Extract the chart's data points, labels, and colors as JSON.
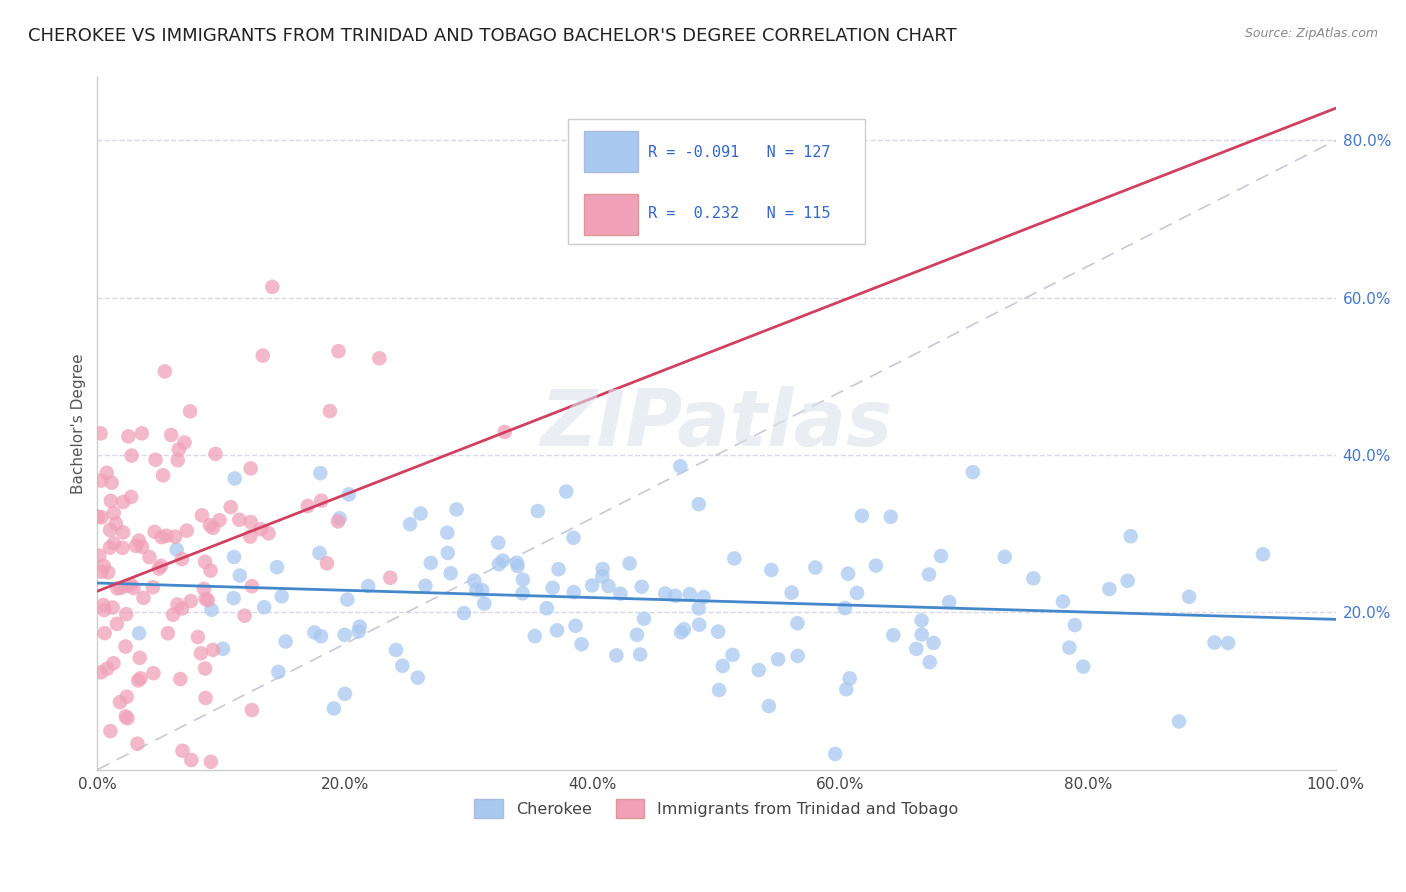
{
  "title": "CHEROKEE VS IMMIGRANTS FROM TRINIDAD AND TOBAGO BACHELOR'S DEGREE CORRELATION CHART",
  "source": "Source: ZipAtlas.com",
  "ylabel": "Bachelor's Degree",
  "xlim": [
    0.0,
    1.0
  ],
  "ylim": [
    0.0,
    0.88
  ],
  "xticks": [
    0.0,
    0.2,
    0.4,
    0.6,
    0.8,
    1.0
  ],
  "yticks": [
    0.2,
    0.4,
    0.6,
    0.8
  ],
  "ytick_labels": [
    "20.0%",
    "40.0%",
    "60.0%",
    "80.0%"
  ],
  "xtick_labels": [
    "0.0%",
    "20.0%",
    "40.0%",
    "60.0%",
    "80.0%",
    "100.0%"
  ],
  "color_blue": "#a8c8f0",
  "color_pink": "#f0a0b8",
  "color_blue_line": "#4488cc",
  "color_pink_line": "#d04060",
  "color_diag_line": "#c8c8d8",
  "R1": -0.091,
  "N1": 127,
  "R2": 0.232,
  "N2": 115,
  "background_color": "#ffffff",
  "grid_color": "#d8d8e8",
  "watermark": "ZIPatlas",
  "title_fontsize": 13,
  "axis_fontsize": 11,
  "tick_fontsize": 11
}
